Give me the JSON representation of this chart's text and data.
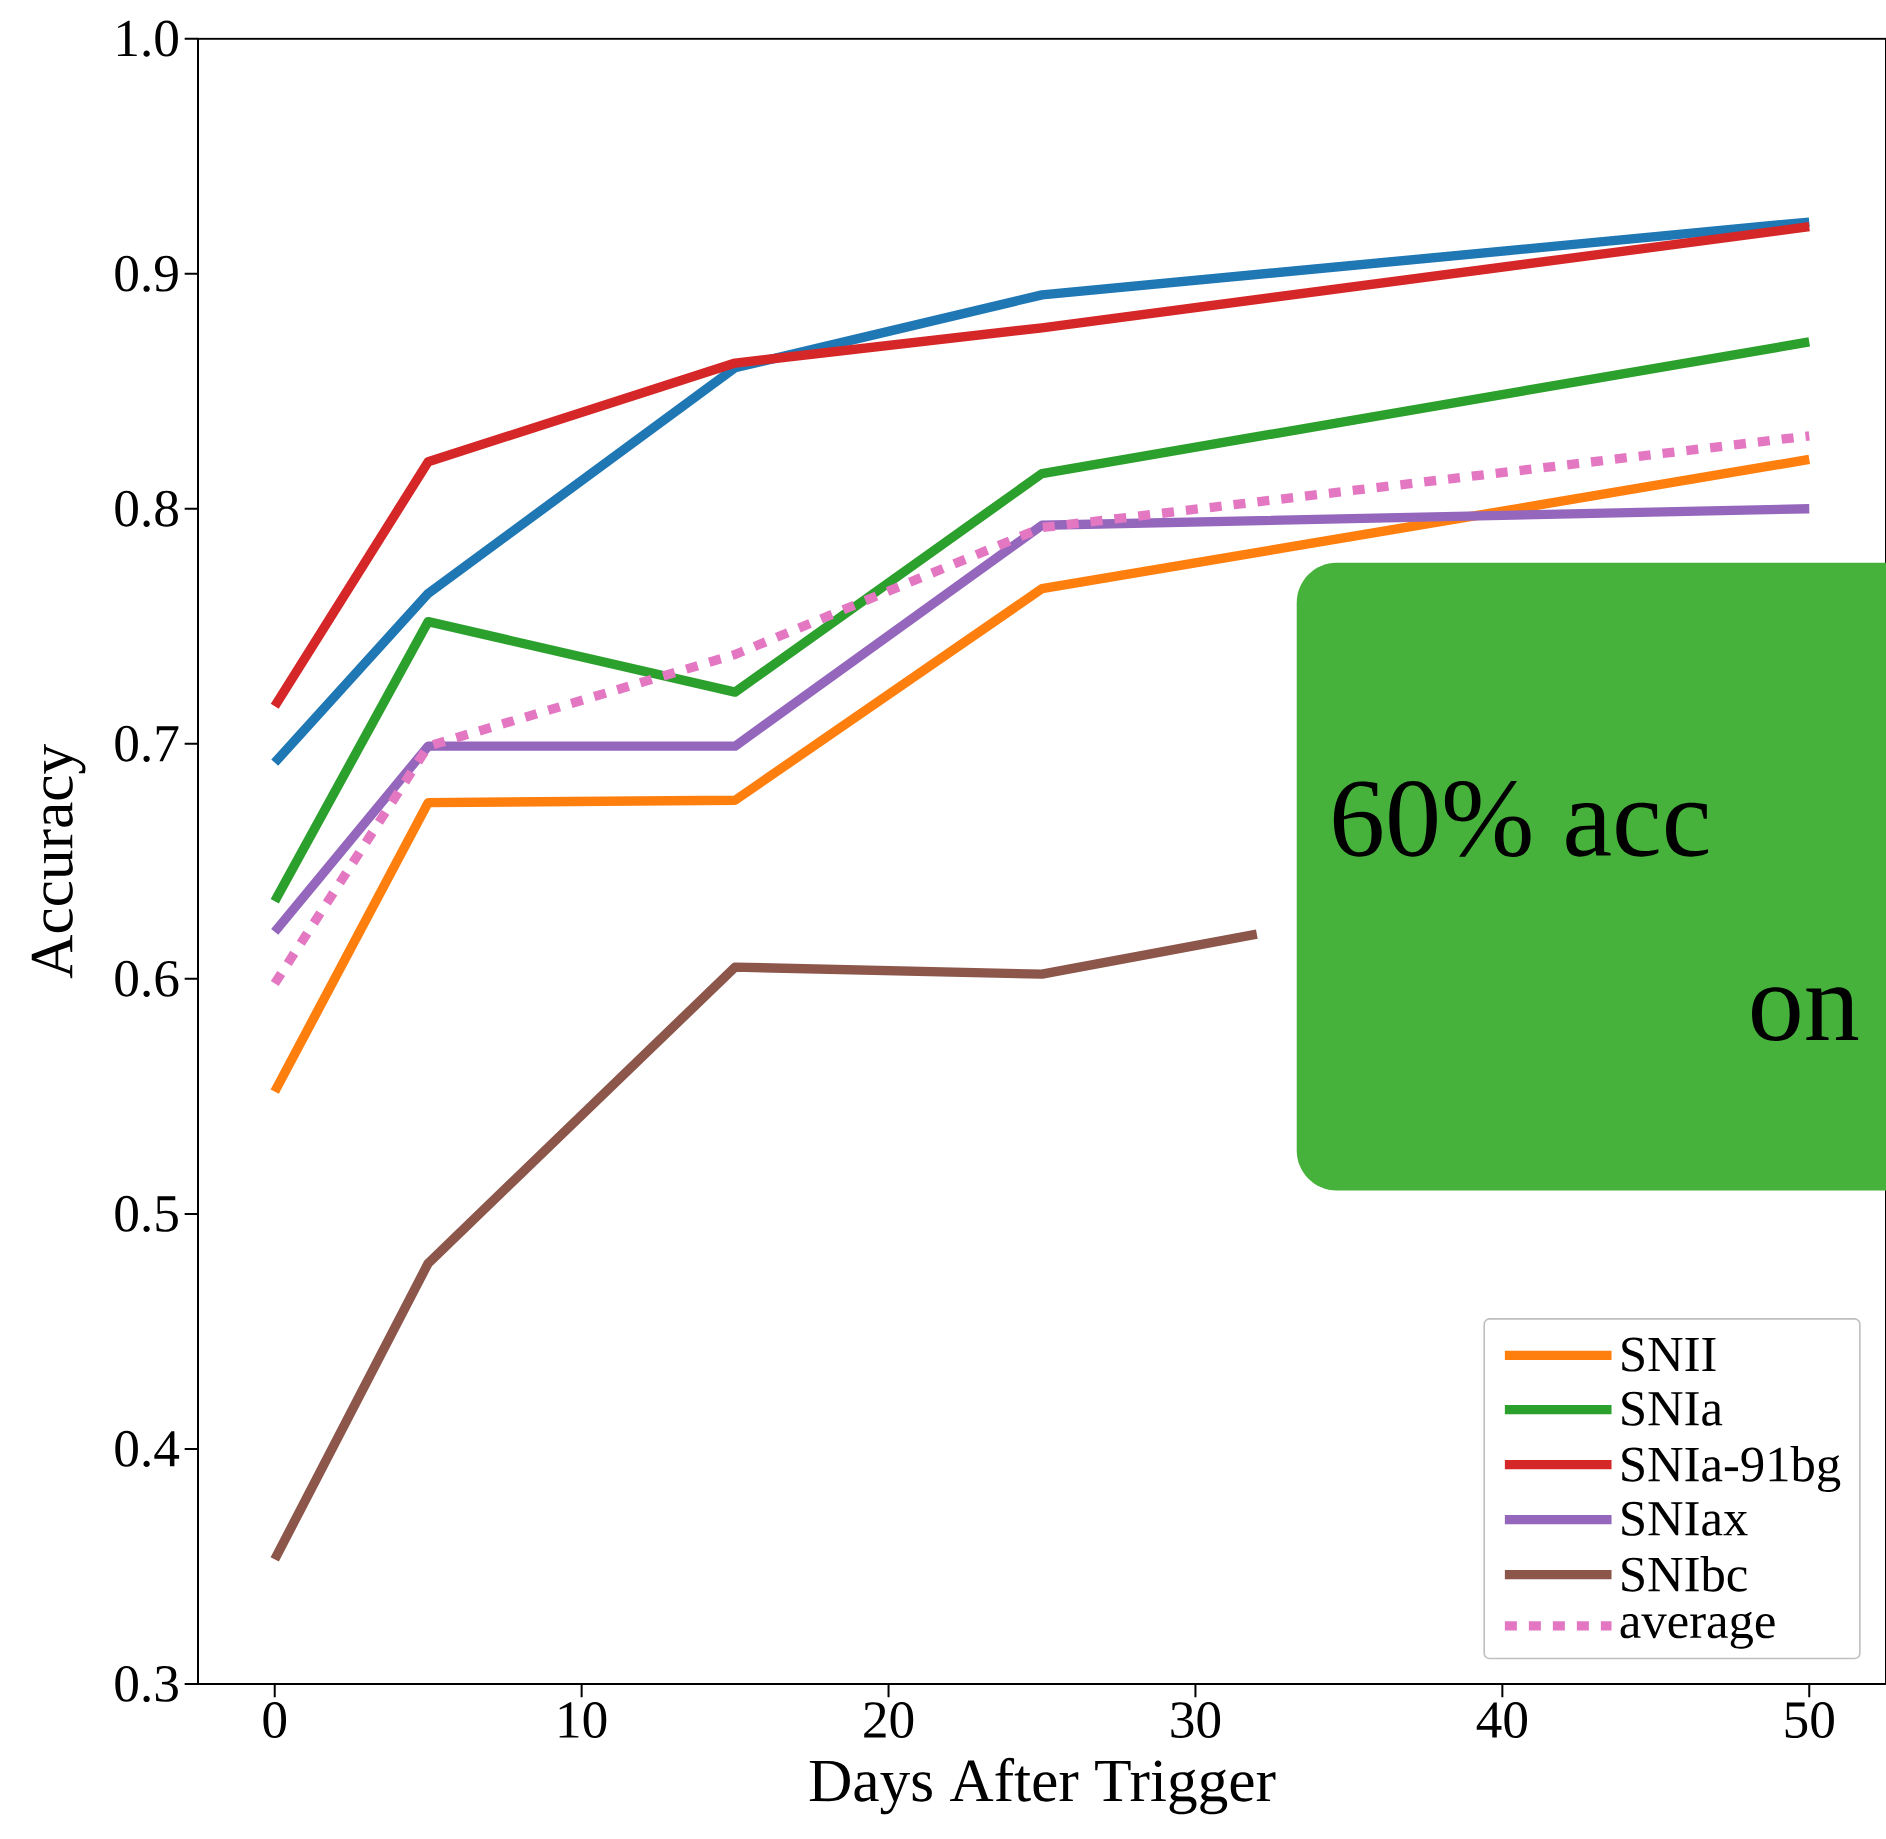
{
  "chart_data": {
    "type": "line",
    "xlabel": "Days After Trigger",
    "ylabel": "Accuracy",
    "x": [
      0,
      5,
      15,
      25,
      50
    ],
    "xlim": [
      -2.5,
      52.5
    ],
    "xticks": [
      0,
      10,
      20,
      30,
      40,
      50
    ],
    "ylim": [
      0.3,
      1.0
    ],
    "yticks": [
      0.3,
      0.4,
      0.5,
      0.6,
      0.7,
      0.8,
      0.9,
      {
        "value": 1.0,
        "label": "1.0"
      }
    ],
    "legend": "bottom right",
    "line_style": "solid",
    "series": [
      {
        "color": "#1f77b4",
        "values": [
          0.692,
          0.764,
          0.86,
          0.891,
          0.922
        ]
      },
      {
        "name": "SNII",
        "color": "#ff7f0e",
        "values": [
          0.552,
          0.675,
          0.676,
          0.766,
          0.821
        ]
      },
      {
        "name": "SNIa",
        "color": "#2ca02c",
        "values": [
          0.633,
          0.752,
          0.722,
          0.815,
          0.871
        ]
      },
      {
        "name": "SNIa-91bg",
        "color": "#d62728",
        "values": [
          0.716,
          0.82,
          0.862,
          0.877,
          0.92
        ]
      },
      {
        "name": "SNIax",
        "color": "#9467bd",
        "values": [
          0.62,
          0.699,
          0.699,
          0.793,
          0.8
        ]
      },
      {
        "name": "SNIbc",
        "color": "#8c564b",
        "x": [
          0,
          5,
          15,
          25,
          32
        ],
        "values": [
          0.353,
          0.479,
          0.605,
          0.602,
          0.619
        ]
      },
      {
        "name": "average",
        "color": "#e377c2",
        "line_style": "dotted",
        "values": [
          0.598,
          0.699,
          0.738,
          0.792,
          0.831
        ]
      }
    ],
    "annotations": [
      "60% acc",
      "on"
    ]
  }
}
